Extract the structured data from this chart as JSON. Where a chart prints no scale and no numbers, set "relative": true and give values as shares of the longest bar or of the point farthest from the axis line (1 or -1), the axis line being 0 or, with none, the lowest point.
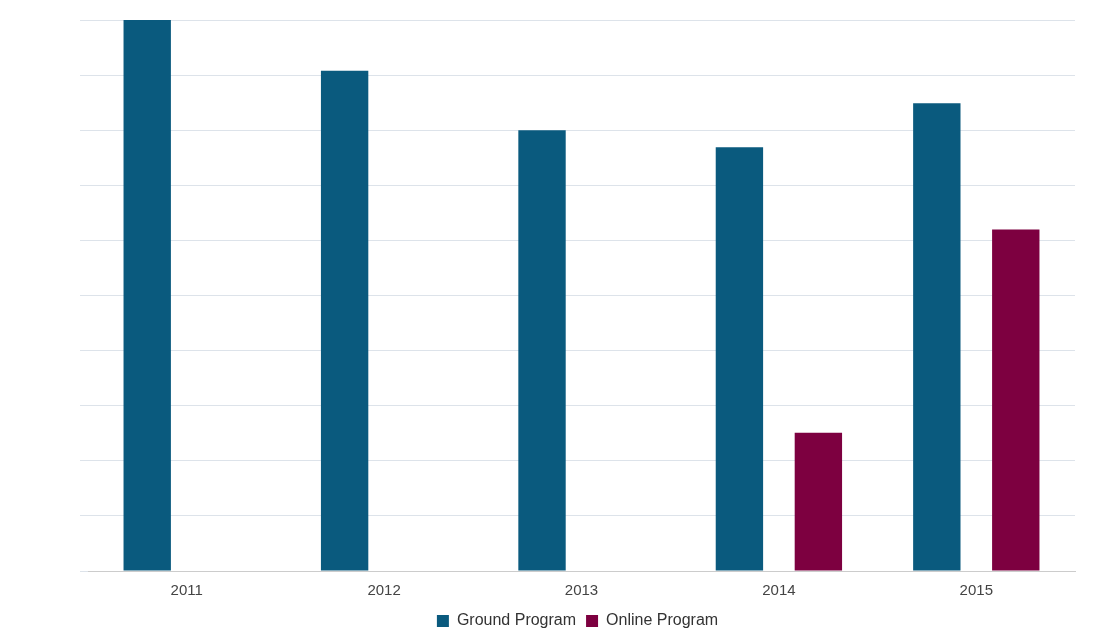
{
  "chart_data": {
    "type": "bar",
    "relative": true,
    "categories": [
      "2011",
      "2012",
      "2013",
      "2014",
      "2015"
    ],
    "series": [
      {
        "name": "Ground Program",
        "color": "#0a5a7e",
        "values": [
          1,
          0.908,
          0.8,
          0.769,
          0.849
        ]
      },
      {
        "name": "Online Program",
        "color": "#7d0040",
        "values": [
          null,
          null,
          null,
          0.251,
          0.62
        ]
      }
    ],
    "grid": "y",
    "legend": "bottom"
  }
}
